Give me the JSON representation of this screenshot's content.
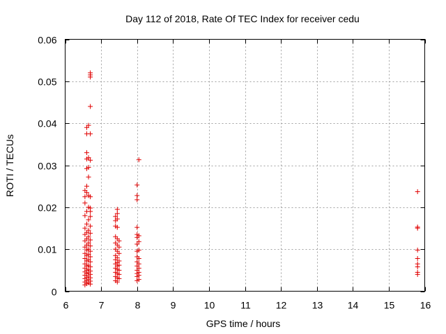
{
  "chart_data": {
    "type": "scatter",
    "title": "Day 112 of 2018, Rate Of TEC Index for receiver cedu",
    "xlabel": "GPS time / hours",
    "ylabel": "ROTI / TECUs",
    "xlim": [
      6,
      16
    ],
    "ylim": [
      0,
      0.06
    ],
    "xticks": [
      6,
      7,
      8,
      9,
      10,
      11,
      12,
      13,
      14,
      15,
      16
    ],
    "xtick_labels": [
      "6",
      "7",
      "8",
      "9",
      "10",
      "11",
      "12",
      "13",
      "14",
      "15",
      "16"
    ],
    "yticks": [
      0,
      0.01,
      0.02,
      0.03,
      0.04,
      0.05,
      0.06
    ],
    "ytick_labels": [
      "0",
      "0.01",
      "0.02",
      "0.03",
      "0.04",
      "0.05",
      "0.06"
    ],
    "grid": true,
    "marker": "plus",
    "series": [
      {
        "name": "ROTI",
        "color": "#e00000",
        "points": [
          [
            6.55,
            0.0015
          ],
          [
            6.55,
            0.0022
          ],
          [
            6.55,
            0.003
          ],
          [
            6.55,
            0.0038
          ],
          [
            6.55,
            0.0046
          ],
          [
            6.55,
            0.0055
          ],
          [
            6.55,
            0.0065
          ],
          [
            6.55,
            0.0078
          ],
          [
            6.55,
            0.009
          ],
          [
            6.55,
            0.0105
          ],
          [
            6.55,
            0.012
          ],
          [
            6.55,
            0.0135
          ],
          [
            6.55,
            0.015
          ],
          [
            6.55,
            0.018
          ],
          [
            6.55,
            0.021
          ],
          [
            6.55,
            0.0225
          ],
          [
            6.55,
            0.024
          ],
          [
            6.6,
            0.0018
          ],
          [
            6.6,
            0.0025
          ],
          [
            6.6,
            0.0033
          ],
          [
            6.6,
            0.0042
          ],
          [
            6.6,
            0.005
          ],
          [
            6.6,
            0.006
          ],
          [
            6.6,
            0.0072
          ],
          [
            6.6,
            0.0085
          ],
          [
            6.6,
            0.0098
          ],
          [
            6.6,
            0.011
          ],
          [
            6.6,
            0.0125
          ],
          [
            6.6,
            0.014
          ],
          [
            6.6,
            0.016
          ],
          [
            6.6,
            0.019
          ],
          [
            6.6,
            0.0235
          ],
          [
            6.6,
            0.025
          ],
          [
            6.6,
            0.0292
          ],
          [
            6.6,
            0.0315
          ],
          [
            6.6,
            0.033
          ],
          [
            6.6,
            0.0375
          ],
          [
            6.6,
            0.039
          ],
          [
            6.65,
            0.002
          ],
          [
            6.65,
            0.0028
          ],
          [
            6.65,
            0.0036
          ],
          [
            6.65,
            0.0044
          ],
          [
            6.65,
            0.0052
          ],
          [
            6.65,
            0.0062
          ],
          [
            6.65,
            0.0075
          ],
          [
            6.65,
            0.0088
          ],
          [
            6.65,
            0.01
          ],
          [
            6.65,
            0.0115
          ],
          [
            6.65,
            0.013
          ],
          [
            6.65,
            0.0145
          ],
          [
            6.65,
            0.017
          ],
          [
            6.65,
            0.02
          ],
          [
            6.65,
            0.0228
          ],
          [
            6.65,
            0.0272
          ],
          [
            6.65,
            0.0295
          ],
          [
            6.65,
            0.0318
          ],
          [
            6.65,
            0.0395
          ],
          [
            6.7,
            0.0017
          ],
          [
            6.7,
            0.0024
          ],
          [
            6.7,
            0.0032
          ],
          [
            6.7,
            0.004
          ],
          [
            6.7,
            0.0048
          ],
          [
            6.7,
            0.0058
          ],
          [
            6.7,
            0.007
          ],
          [
            6.7,
            0.0082
          ],
          [
            6.7,
            0.0095
          ],
          [
            6.7,
            0.0108
          ],
          [
            6.7,
            0.0122
          ],
          [
            6.7,
            0.0138
          ],
          [
            6.7,
            0.0155
          ],
          [
            6.7,
            0.0178
          ],
          [
            6.7,
            0.019
          ],
          [
            6.7,
            0.0198
          ],
          [
            6.7,
            0.0225
          ],
          [
            6.7,
            0.0312
          ],
          [
            6.7,
            0.0375
          ],
          [
            6.7,
            0.044
          ],
          [
            6.7,
            0.051
          ],
          [
            6.7,
            0.0515
          ],
          [
            6.7,
            0.052
          ],
          [
            7.4,
            0.0025
          ],
          [
            7.4,
            0.0035
          ],
          [
            7.4,
            0.0045
          ],
          [
            7.4,
            0.0055
          ],
          [
            7.4,
            0.0065
          ],
          [
            7.4,
            0.0075
          ],
          [
            7.4,
            0.0085
          ],
          [
            7.4,
            0.01
          ],
          [
            7.4,
            0.0115
          ],
          [
            7.4,
            0.013
          ],
          [
            7.4,
            0.0155
          ],
          [
            7.4,
            0.0168
          ],
          [
            7.4,
            0.0178
          ],
          [
            7.45,
            0.0022
          ],
          [
            7.45,
            0.0032
          ],
          [
            7.45,
            0.0042
          ],
          [
            7.45,
            0.0052
          ],
          [
            7.45,
            0.006
          ],
          [
            7.45,
            0.0068
          ],
          [
            7.45,
            0.008
          ],
          [
            7.45,
            0.0095
          ],
          [
            7.45,
            0.011
          ],
          [
            7.45,
            0.0125
          ],
          [
            7.45,
            0.0152
          ],
          [
            7.45,
            0.0172
          ],
          [
            7.45,
            0.0185
          ],
          [
            7.45,
            0.0195
          ],
          [
            7.5,
            0.003
          ],
          [
            7.5,
            0.004
          ],
          [
            7.5,
            0.005
          ],
          [
            7.5,
            0.0062
          ],
          [
            7.5,
            0.0072
          ],
          [
            7.5,
            0.009
          ],
          [
            7.5,
            0.0105
          ],
          [
            7.5,
            0.012
          ],
          [
            8.0,
            0.0025
          ],
          [
            8.0,
            0.0035
          ],
          [
            8.0,
            0.0042
          ],
          [
            8.0,
            0.005
          ],
          [
            8.0,
            0.006
          ],
          [
            8.0,
            0.007
          ],
          [
            8.0,
            0.0082
          ],
          [
            8.0,
            0.0095
          ],
          [
            8.0,
            0.0112
          ],
          [
            8.0,
            0.0128
          ],
          [
            8.0,
            0.0135
          ],
          [
            8.0,
            0.0152
          ],
          [
            8.0,
            0.0218
          ],
          [
            8.0,
            0.0228
          ],
          [
            8.0,
            0.0253
          ],
          [
            8.05,
            0.0028
          ],
          [
            8.05,
            0.0038
          ],
          [
            8.05,
            0.0045
          ],
          [
            8.05,
            0.0055
          ],
          [
            8.05,
            0.0065
          ],
          [
            8.05,
            0.0078
          ],
          [
            8.05,
            0.0098
          ],
          [
            8.05,
            0.0118
          ],
          [
            8.05,
            0.0132
          ],
          [
            8.05,
            0.0313
          ],
          [
            15.8,
            0.004
          ],
          [
            15.8,
            0.0045
          ],
          [
            15.8,
            0.0058
          ],
          [
            15.8,
            0.0065
          ],
          [
            15.8,
            0.0078
          ],
          [
            15.8,
            0.0098
          ],
          [
            15.8,
            0.015
          ],
          [
            15.8,
            0.0153
          ],
          [
            15.8,
            0.0237
          ]
        ]
      }
    ]
  }
}
